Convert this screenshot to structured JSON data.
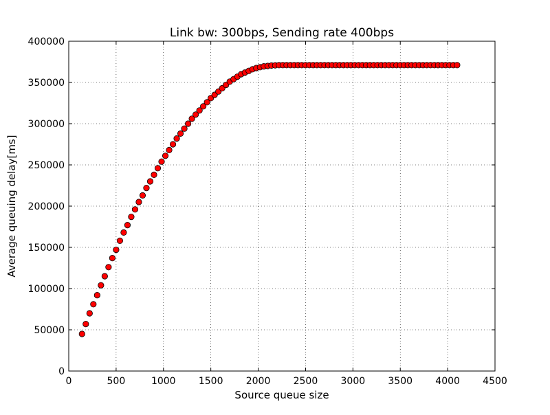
{
  "chart_data": {
    "type": "scatter",
    "title": "Link bw: 300bps, Sending rate 400bps",
    "xlabel": "Source queue size",
    "ylabel": "Average queuing delay[ms]",
    "xlim": [
      0,
      4500
    ],
    "ylim": [
      0,
      400000
    ],
    "xticks": [
      0,
      500,
      1000,
      1500,
      2000,
      2500,
      3000,
      3500,
      4000,
      4500
    ],
    "yticks": [
      0,
      50000,
      100000,
      150000,
      200000,
      250000,
      300000,
      350000,
      400000
    ],
    "grid": true,
    "marker_color": "#ff0000",
    "marker_edge_color": "#000000",
    "series": [
      {
        "x": [
          140,
          180,
          220,
          260,
          300,
          340,
          380,
          420,
          460,
          500,
          540,
          580,
          620,
          660,
          700,
          740,
          780,
          820,
          860,
          900,
          940,
          980,
          1020,
          1060,
          1100,
          1140,
          1180,
          1220,
          1260,
          1300,
          1340,
          1380,
          1420,
          1460,
          1500,
          1540,
          1580,
          1620,
          1660,
          1700,
          1740,
          1780,
          1820,
          1860,
          1900,
          1940,
          1980,
          2020,
          2060,
          2100,
          2140,
          2180,
          2220,
          2260,
          2300,
          2340,
          2380,
          2420,
          2460,
          2500,
          2540,
          2580,
          2620,
          2660,
          2700,
          2740,
          2780,
          2820,
          2860,
          2900,
          2940,
          2980,
          3020,
          3060,
          3100,
          3140,
          3180,
          3220,
          3260,
          3300,
          3340,
          3380,
          3420,
          3460,
          3500,
          3540,
          3580,
          3620,
          3660,
          3700,
          3740,
          3780,
          3820,
          3860,
          3900,
          3940,
          3980,
          4020,
          4060,
          4100
        ],
        "y": [
          45000,
          57000,
          70000,
          81000,
          92000,
          104000,
          115000,
          126000,
          137000,
          147000,
          158000,
          168000,
          177000,
          187000,
          196000,
          205000,
          213000,
          222000,
          230000,
          238000,
          246000,
          254000,
          261000,
          268000,
          275000,
          282000,
          288000,
          294000,
          300000,
          306000,
          311000,
          316000,
          321000,
          326000,
          331000,
          335000,
          339000,
          343000,
          347000,
          351000,
          354000,
          357000,
          360000,
          362000,
          364000,
          366000,
          367500,
          368500,
          369500,
          370000,
          370500,
          370800,
          371000,
          371000,
          371000,
          371000,
          371000,
          371000,
          371000,
          371000,
          371000,
          371000,
          371000,
          371000,
          371000,
          371000,
          371000,
          371000,
          371000,
          371000,
          371000,
          371000,
          371000,
          371000,
          371000,
          371000,
          371000,
          371000,
          371000,
          371000,
          371000,
          371000,
          371000,
          371000,
          371000,
          371000,
          371000,
          371000,
          371000,
          371000,
          371000,
          371000,
          371000,
          371000,
          371000,
          371000,
          371000,
          371000,
          371000,
          371000
        ]
      }
    ]
  }
}
